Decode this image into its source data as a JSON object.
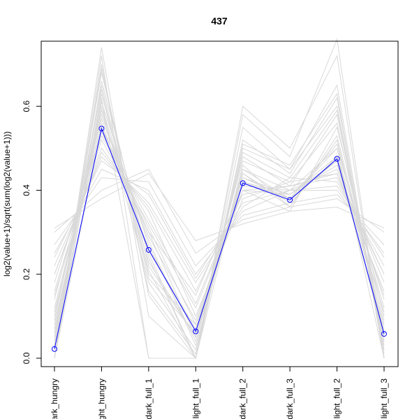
{
  "chart_data": {
    "type": "line",
    "title": "437",
    "xlabel": "",
    "ylabel": "log2(value+1)/sqrt(sum(log2(value+1)))",
    "categories": [
      "dark_hungry",
      "light_hungry",
      "dark_full_1",
      "light_full_1",
      "dark_full_2",
      "dark_full_3",
      "light_full_2",
      "light_full_3"
    ],
    "category_labels_shown": [
      "ark_hungry",
      "ght_hungry",
      "dark_full_1",
      "light_full_1",
      "dark_full_2",
      "dark_full_3",
      "light_full_2",
      "light_full_3"
    ],
    "ylim": [
      -0.02,
      0.755
    ],
    "yticks": [
      0.0,
      0.2,
      0.4,
      0.6
    ],
    "ytick_labels": [
      "0.0",
      "0.2",
      "0.4",
      "0.6"
    ],
    "grid": false,
    "highlight_series": {
      "color": "#0000ff",
      "marker": "open-circle",
      "values": [
        0.022,
        0.547,
        0.258,
        0.064,
        0.417,
        0.377,
        0.475,
        0.058
      ]
    },
    "background_series_color": "#d9d9d9",
    "background_series": [
      [
        0.0,
        0.55,
        0.3,
        0.05,
        0.42,
        0.38,
        0.47,
        0.05
      ],
      [
        0.1,
        0.6,
        0.25,
        0.0,
        0.45,
        0.4,
        0.5,
        0.0
      ],
      [
        0.05,
        0.65,
        0.2,
        0.08,
        0.4,
        0.35,
        0.55,
        0.1
      ],
      [
        0.2,
        0.5,
        0.35,
        0.1,
        0.38,
        0.42,
        0.44,
        0.2
      ],
      [
        0.0,
        0.7,
        0.15,
        0.0,
        0.5,
        0.45,
        0.6,
        0.02
      ],
      [
        0.25,
        0.45,
        0.4,
        0.2,
        0.35,
        0.4,
        0.4,
        0.25
      ],
      [
        0.08,
        0.58,
        0.28,
        0.03,
        0.44,
        0.37,
        0.48,
        0.08
      ],
      [
        0.15,
        0.52,
        0.32,
        0.12,
        0.4,
        0.39,
        0.46,
        0.15
      ],
      [
        0.0,
        0.62,
        0.0,
        0.0,
        0.55,
        0.45,
        0.65,
        0.0
      ],
      [
        0.3,
        0.4,
        0.45,
        0.25,
        0.33,
        0.36,
        0.38,
        0.3
      ],
      [
        0.03,
        0.68,
        0.22,
        0.05,
        0.48,
        0.41,
        0.58,
        0.04
      ],
      [
        0.12,
        0.56,
        0.26,
        0.07,
        0.43,
        0.38,
        0.5,
        0.12
      ],
      [
        0.0,
        0.74,
        0.1,
        0.0,
        0.6,
        0.5,
        0.72,
        0.0
      ],
      [
        0.22,
        0.48,
        0.37,
        0.18,
        0.36,
        0.43,
        0.42,
        0.22
      ],
      [
        0.06,
        0.6,
        0.18,
        0.02,
        0.46,
        0.36,
        0.52,
        0.06
      ],
      [
        0.18,
        0.54,
        0.3,
        0.15,
        0.41,
        0.4,
        0.45,
        0.18
      ],
      [
        0.0,
        0.66,
        0.24,
        0.0,
        0.52,
        0.44,
        0.62,
        0.01
      ],
      [
        0.27,
        0.43,
        0.42,
        0.22,
        0.34,
        0.37,
        0.39,
        0.27
      ],
      [
        0.04,
        0.64,
        0.19,
        0.06,
        0.47,
        0.42,
        0.56,
        0.05
      ],
      [
        0.14,
        0.57,
        0.29,
        0.09,
        0.42,
        0.39,
        0.48,
        0.14
      ],
      [
        0.0,
        0.72,
        0.0,
        0.0,
        0.58,
        0.48,
        0.76,
        0.0
      ],
      [
        0.31,
        0.38,
        0.44,
        0.28,
        0.32,
        0.35,
        0.36,
        0.31
      ],
      [
        0.09,
        0.61,
        0.27,
        0.04,
        0.45,
        0.38,
        0.51,
        0.09
      ],
      [
        0.16,
        0.53,
        0.33,
        0.13,
        0.4,
        0.41,
        0.44,
        0.16
      ],
      [
        0.02,
        0.69,
        0.16,
        0.01,
        0.49,
        0.43,
        0.59,
        0.03
      ],
      [
        0.24,
        0.47,
        0.39,
        0.19,
        0.37,
        0.4,
        0.41,
        0.24
      ],
      [
        0.07,
        0.59,
        0.23,
        0.05,
        0.44,
        0.36,
        0.53,
        0.07
      ],
      [
        0.11,
        0.55,
        0.31,
        0.08,
        0.43,
        0.39,
        0.47,
        0.11
      ],
      [
        0.0,
        0.63,
        0.21,
        0.0,
        0.51,
        0.46,
        0.63,
        0.0
      ],
      [
        0.2,
        0.49,
        0.36,
        0.16,
        0.39,
        0.41,
        0.43,
        0.2
      ]
    ]
  }
}
